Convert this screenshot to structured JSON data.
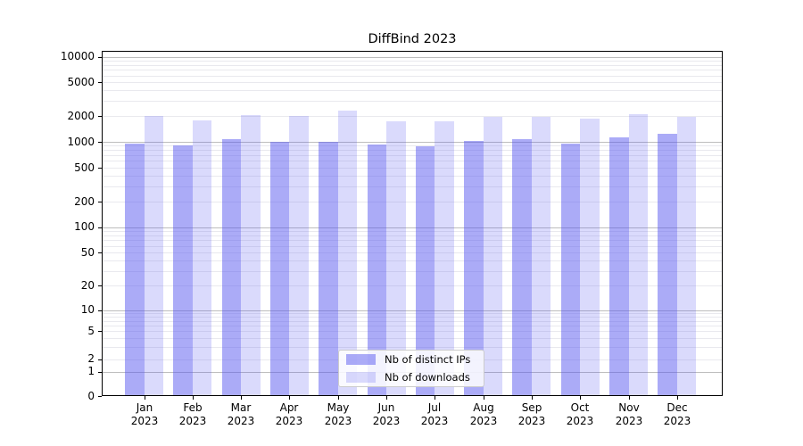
{
  "title": "DiffBind 2023",
  "chart_data": {
    "type": "bar",
    "title": "DiffBind 2023",
    "yscale": "symlog",
    "ylim": [
      0,
      10000
    ],
    "grid": true,
    "legend_position": "lower center",
    "y_ticks": [
      10000,
      5000,
      2000,
      1000,
      500,
      200,
      100,
      50,
      20,
      10,
      5,
      2,
      1,
      0
    ],
    "categories": [
      "Jan 2023",
      "Feb 2023",
      "Mar 2023",
      "Apr 2023",
      "May 2023",
      "Jun 2023",
      "Jul 2023",
      "Aug 2023",
      "Sep 2023",
      "Oct 2023",
      "Nov 2023",
      "Dec 2023"
    ],
    "x_tick_labels": [
      {
        "month": "Jan",
        "year": "2023"
      },
      {
        "month": "Feb",
        "year": "2023"
      },
      {
        "month": "Mar",
        "year": "2023"
      },
      {
        "month": "Apr",
        "year": "2023"
      },
      {
        "month": "May",
        "year": "2023"
      },
      {
        "month": "Jun",
        "year": "2023"
      },
      {
        "month": "Jul",
        "year": "2023"
      },
      {
        "month": "Aug",
        "year": "2023"
      },
      {
        "month": "Sep",
        "year": "2023"
      },
      {
        "month": "Oct",
        "year": "2023"
      },
      {
        "month": "Nov",
        "year": "2023"
      },
      {
        "month": "Dec",
        "year": "2023"
      }
    ],
    "series": [
      {
        "name": "Nb of distinct IPs",
        "color": "rgba(88,88,240,0.5)",
        "values": [
          950,
          900,
          1080,
          990,
          1000,
          940,
          890,
          1020,
          1070,
          960,
          1120,
          1250
        ]
      },
      {
        "name": "Nb of downloads",
        "color": "rgba(88,88,240,0.22)",
        "values": [
          2010,
          1790,
          2060,
          1990,
          2330,
          1740,
          1740,
          1960,
          1940,
          1870,
          2120,
          1950
        ]
      }
    ]
  },
  "colors": {
    "grid_major": "#bdbdbd",
    "grid_minor": "#e9e9ee",
    "axis": "#000000"
  }
}
